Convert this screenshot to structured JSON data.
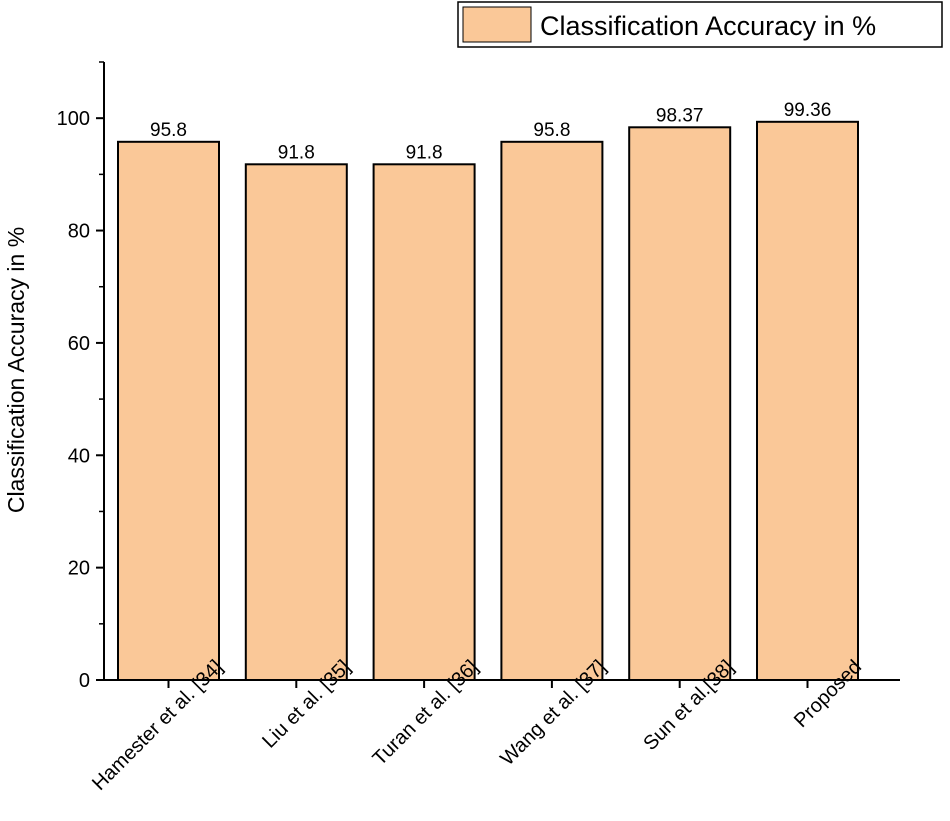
{
  "chart_data": {
    "type": "bar",
    "categories": [
      "Hamester et al. [34]",
      "Liu et al. [35]",
      "Turan et al. [36]",
      "Wang et al. [37]",
      "Sun et al.[38]",
      "Proposed"
    ],
    "series": [
      {
        "name": "Classification Accuracy in %",
        "values": [
          95.8,
          91.8,
          91.8,
          95.8,
          98.37,
          99.36
        ],
        "value_labels": [
          "95.8",
          "91.8",
          "91.8",
          "95.8",
          "98.37",
          "99.36"
        ]
      }
    ],
    "title": "",
    "xlabel": "",
    "ylabel": "Classification Accuracy in %",
    "ylim": [
      0,
      110
    ],
    "yticks": [
      0,
      20,
      40,
      60,
      80,
      100
    ],
    "grid": false,
    "legend_position": "top-right",
    "bar_color": "#fac898",
    "edge_color": "#000000"
  }
}
